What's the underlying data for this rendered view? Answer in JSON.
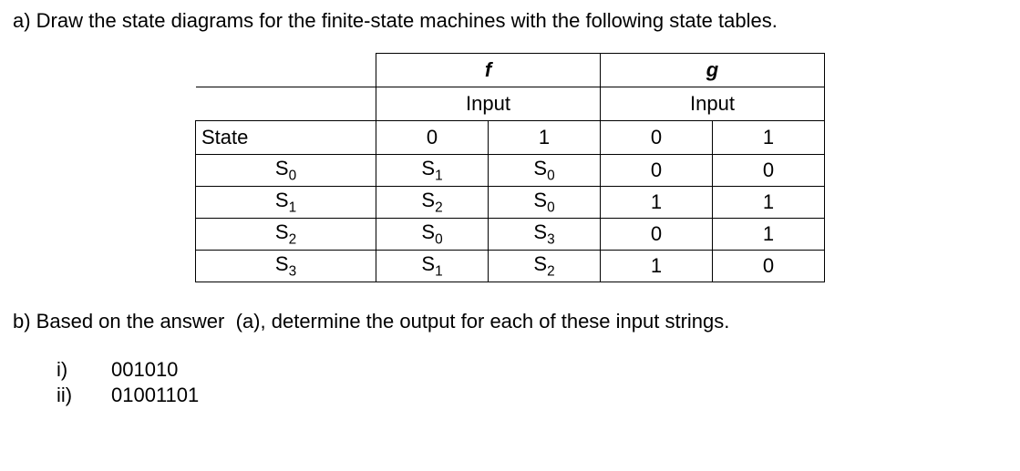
{
  "partA": {
    "prompt": "a) Draw the state diagrams for the finite-state machines with the following state tables."
  },
  "table": {
    "f_label": "f",
    "g_label": "g",
    "input_label": "Input",
    "state_label": "State",
    "col0": "0",
    "col1": "1",
    "rows": [
      {
        "state_base": "S",
        "state_sub": "0",
        "f0_base": "S",
        "f0_sub": "1",
        "f1_base": "S",
        "f1_sub": "0",
        "g0": "0",
        "g1": "0"
      },
      {
        "state_base": "S",
        "state_sub": "1",
        "f0_base": "S",
        "f0_sub": "2",
        "f1_base": "S",
        "f1_sub": "0",
        "g0": "1",
        "g1": "1"
      },
      {
        "state_base": "S",
        "state_sub": "2",
        "f0_base": "S",
        "f0_sub": "0",
        "f1_base": "S",
        "f1_sub": "3",
        "g0": "0",
        "g1": "1"
      },
      {
        "state_base": "S",
        "state_sub": "3",
        "f0_base": "S",
        "f0_sub": "1",
        "f1_base": "S",
        "f1_sub": "2",
        "g0": "1",
        "g1": "0"
      }
    ]
  },
  "partB": {
    "prompt_before": "b) Based on the answer",
    "prompt_mid": "(a), determine the output for each of these input strings.",
    "items": [
      {
        "label": "i)",
        "value": "001010"
      },
      {
        "label": "ii)",
        "value": "01001101"
      }
    ]
  }
}
